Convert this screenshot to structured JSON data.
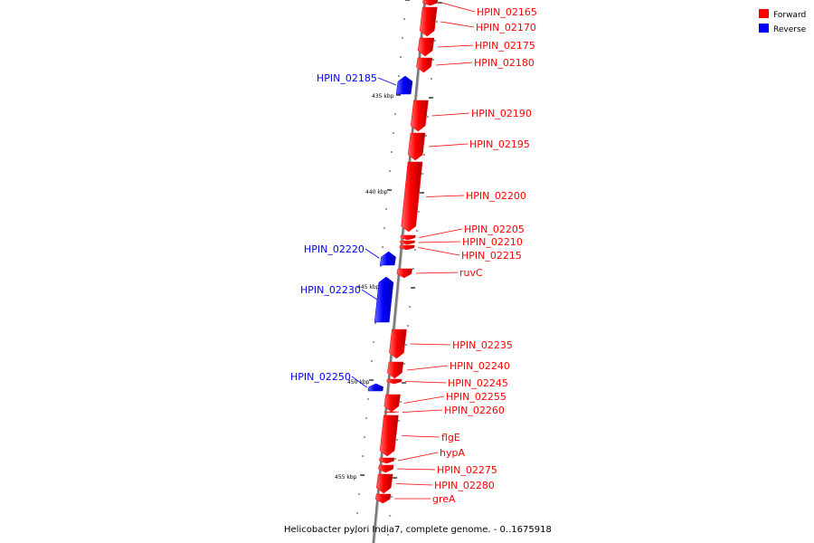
{
  "legend": {
    "items": [
      {
        "label": "Forward",
        "color": "#ff0000"
      },
      {
        "label": "Reverse",
        "color": "#0000ff"
      }
    ]
  },
  "caption": "Helicobacter pylori India7, complete genome. - 0..1675918",
  "axis": {
    "tick_labels": [
      "435 kbp",
      "440 kbp",
      "445 kbp",
      "450 kbp",
      "455 kbp"
    ]
  },
  "colors": {
    "forward": "#ff0000",
    "reverse": "#0000ff",
    "backbone": "#888888"
  },
  "genes": [
    {
      "name": "HPIN_02165",
      "strand": "forward"
    },
    {
      "name": "HPIN_02170",
      "strand": "forward"
    },
    {
      "name": "HPIN_02175",
      "strand": "forward"
    },
    {
      "name": "HPIN_02180",
      "strand": "forward"
    },
    {
      "name": "HPIN_02185",
      "strand": "reverse"
    },
    {
      "name": "HPIN_02190",
      "strand": "forward"
    },
    {
      "name": "HPIN_02195",
      "strand": "forward"
    },
    {
      "name": "HPIN_02200",
      "strand": "forward"
    },
    {
      "name": "HPIN_02205",
      "strand": "forward"
    },
    {
      "name": "HPIN_02210",
      "strand": "forward"
    },
    {
      "name": "HPIN_02215",
      "strand": "forward"
    },
    {
      "name": "HPIN_02220",
      "strand": "reverse"
    },
    {
      "name": "ruvC",
      "strand": "forward"
    },
    {
      "name": "HPIN_02230",
      "strand": "reverse"
    },
    {
      "name": "HPIN_02235",
      "strand": "forward"
    },
    {
      "name": "HPIN_02240",
      "strand": "forward"
    },
    {
      "name": "HPIN_02245",
      "strand": "forward"
    },
    {
      "name": "HPIN_02250",
      "strand": "reverse"
    },
    {
      "name": "HPIN_02255",
      "strand": "forward"
    },
    {
      "name": "HPIN_02260",
      "strand": "forward"
    },
    {
      "name": "flgE",
      "strand": "forward"
    },
    {
      "name": "hypA",
      "strand": "forward"
    },
    {
      "name": "HPIN_02275",
      "strand": "forward"
    },
    {
      "name": "HPIN_02280",
      "strand": "forward"
    },
    {
      "name": "greA",
      "strand": "forward"
    }
  ]
}
